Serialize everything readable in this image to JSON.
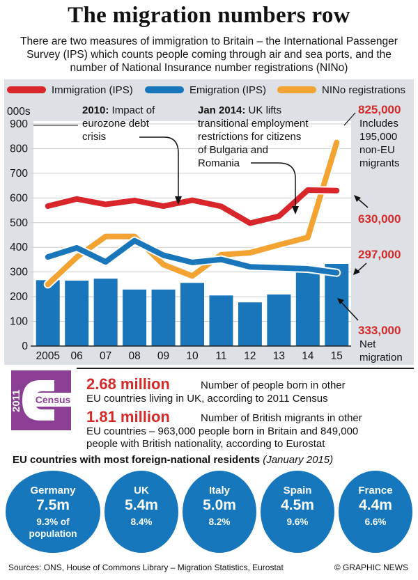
{
  "header": {
    "title": "The migration numbers row",
    "subtitle": "There are two measures of immigration to Britain – the International Passenger Survey (IPS) which counts people coming through air and sea ports, and the number of National Insurance number registrations (NINo)"
  },
  "legend": {
    "immigration": "Immigration (IPS)",
    "emigration": "Emigration (IPS)",
    "nino": "NINo registrations"
  },
  "colors": {
    "immigration": "#d9262b",
    "emigration": "#1a76bb",
    "nino": "#f2a332",
    "bars": "#1a76bb",
    "highlight": "#d42a2a",
    "panel": "#dde1e6"
  },
  "chart_data": {
    "type": "bar",
    "unit_label": "000s",
    "categories": [
      "2005",
      "06",
      "07",
      "08",
      "09",
      "10",
      "11",
      "12",
      "13",
      "14",
      "15"
    ],
    "ylim": [
      0,
      900
    ],
    "yticks": [
      0,
      100,
      200,
      300,
      400,
      500,
      600,
      700,
      800,
      900
    ],
    "series": [
      {
        "name": "Net migration",
        "kind": "bar",
        "values": [
          267,
          265,
          273,
          229,
          229,
          256,
          205,
          177,
          209,
          300,
          333
        ]
      },
      {
        "name": "Immigration (IPS)",
        "kind": "line",
        "values": [
          567,
          596,
          574,
          590,
          567,
          591,
          566,
          498,
          526,
          632,
          630
        ]
      },
      {
        "name": "Emigration (IPS)",
        "kind": "line",
        "values": [
          361,
          398,
          341,
          427,
          368,
          339,
          351,
          321,
          317,
          313,
          297
        ]
      },
      {
        "name": "NINo registrations",
        "kind": "line",
        "values": [
          250,
          360,
          444,
          444,
          330,
          284,
          370,
          378,
          410,
          440,
          825
        ]
      }
    ],
    "annotations": {
      "a2010_title": "2010:",
      "a2010_text": "Impact of eurozone debt crisis",
      "a2014_title": "Jan 2014:",
      "a2014_text": "UK lifts transitional employment restrictions for citizens of Bulgaria and Romania",
      "nino_value": "825,000",
      "nino_note": "Includes 195,000 non-EU migrants",
      "imm_value": "630,000",
      "emig_value": "297,000",
      "net_value": "333,000",
      "net_label": "Net migration"
    }
  },
  "census": {
    "logo_year": "2011",
    "logo_word": "Census",
    "stat1_value": "2.68 million",
    "stat1_text_a": "Number of people born in other",
    "stat1_text_b": "EU countries living in UK, according to 2011 Census",
    "stat2_value": "1.81 million",
    "stat2_text_a": "Number of British migrants in other",
    "stat2_text_b": "EU countries – 963,000 people born in Britain and 849,000",
    "stat2_text_c": "people with British nationality, according to Eurostat"
  },
  "eu": {
    "title": "EU countries with most foreign-national residents",
    "date": "(January 2015)",
    "countries": [
      {
        "name": "Germany",
        "value": "7.5m",
        "pct": "9.3% of",
        "pct2": "population"
      },
      {
        "name": "UK",
        "value": "5.4m",
        "pct": "8.4%"
      },
      {
        "name": "Italy",
        "value": "5.0m",
        "pct": "8.2%"
      },
      {
        "name": "Spain",
        "value": "4.5m",
        "pct": "9.6%"
      },
      {
        "name": "France",
        "value": "4.4m",
        "pct": "6.6%"
      }
    ]
  },
  "footer": {
    "sources": "Sources: ONS, House of Commons Library – Migration Statistics, Eurostat",
    "credit": "© GRAPHIC NEWS"
  }
}
